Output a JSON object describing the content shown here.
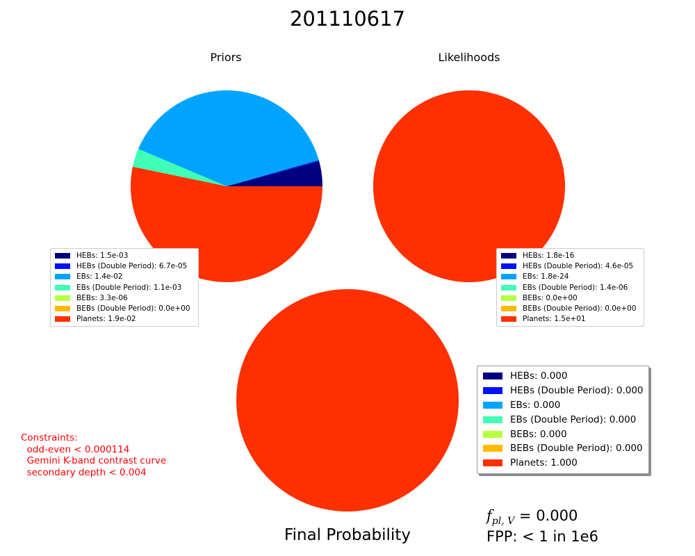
{
  "title": "201110617",
  "chart_data": [
    {
      "type": "pie",
      "title": "Priors",
      "start_angle_deg": 0,
      "direction": "counterclockwise",
      "labels": [
        "HEBs",
        "HEBs (Double Period)",
        "EBs",
        "EBs (Double Period)",
        "BEBs",
        "BEBs (Double Period)",
        "Planets"
      ],
      "values": [
        0.0015,
        6.7e-05,
        0.014,
        0.0011,
        3.3e-06,
        0.0,
        0.019
      ],
      "legend_texts": [
        "HEBs: 1.5e-03",
        "HEBs (Double Period): 6.7e-05",
        "EBs: 1.4e-02",
        "EBs (Double Period): 1.1e-03",
        "BEBs: 3.3e-06",
        "BEBs (Double Period): 0.0e+00",
        "Planets: 1.9e-02"
      ],
      "legend_position": "lower-left"
    },
    {
      "type": "pie",
      "title": "Likelihoods",
      "start_angle_deg": 0,
      "direction": "counterclockwise",
      "labels": [
        "HEBs",
        "HEBs (Double Period)",
        "EBs",
        "EBs (Double Period)",
        "BEBs",
        "BEBs (Double Period)",
        "Planets"
      ],
      "values": [
        1.8e-16,
        4.6e-05,
        1.8e-24,
        1.4e-06,
        0.0,
        0.0,
        15
      ],
      "legend_texts": [
        "HEBs: 1.8e-16",
        "HEBs (Double Period): 4.6e-05",
        "EBs: 1.8e-24",
        "EBs (Double Period): 1.4e-06",
        "BEBs: 0.0e+00",
        "BEBs (Double Period): 0.0e+00",
        "Planets: 1.5e+01"
      ],
      "legend_position": "lower-right"
    },
    {
      "type": "pie",
      "title": "Final Probability",
      "start_angle_deg": 0,
      "direction": "counterclockwise",
      "labels": [
        "HEBs",
        "HEBs (Double Period)",
        "EBs",
        "EBs (Double Period)",
        "BEBs",
        "BEBs (Double Period)",
        "Planets"
      ],
      "values": [
        0.0,
        0.0,
        0.0,
        0.0,
        0.0,
        0.0,
        1.0
      ],
      "legend_texts": [
        "HEBs: 0.000",
        "HEBs (Double Period): 0.000",
        "EBs: 0.000",
        "EBs (Double Period): 0.000",
        "BEBs: 0.000",
        "BEBs (Double Period): 0.000",
        "Planets: 1.000"
      ],
      "legend_position": "right"
    }
  ],
  "colors": [
    "#000080",
    "#0010ff",
    "#00a4ff",
    "#40ffb7",
    "#b7ff40",
    "#ffb900",
    "#ff3000"
  ],
  "constraints": {
    "heading": "Constraints:",
    "lines": [
      "odd-even < 0.000114",
      "Gemini K-band contrast curve",
      "secondary depth < 0.004"
    ]
  },
  "fpl": {
    "symbol": "f",
    "subscript": "pl, V",
    "value": "= 0.000"
  },
  "fpp_text": "FPP: < 1 in 1e6"
}
